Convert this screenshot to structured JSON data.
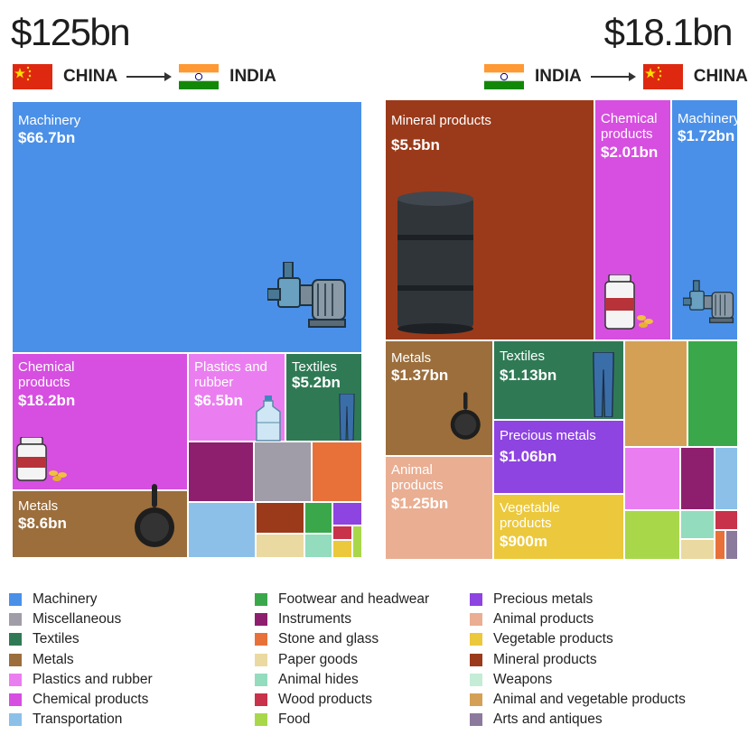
{
  "left": {
    "total": "$125bn",
    "from": "CHINA",
    "to": "INDIA"
  },
  "right": {
    "total": "$18.1bn",
    "from": "INDIA",
    "to": "CHINA"
  },
  "colors": {
    "Machinery": "#4a90e8",
    "Miscellaneous": "#a09ca8",
    "Textiles": "#2f7a55",
    "Metals": "#9b6e3c",
    "Plastics and rubber": "#ea7ef0",
    "Chemical products": "#d64fe0",
    "Transportation": "#8cc0e8",
    "Footwear and headwear": "#3aa84a",
    "Instruments": "#8e1f6e",
    "Stone and glass": "#e8713a",
    "Paper goods": "#ead9a0",
    "Animal hides": "#93dcbe",
    "Wood products": "#c8324a",
    "Food": "#a8d84a",
    "Precious metals": "#8d44e0",
    "Animal products": "#eaae92",
    "Vegetable products": "#ecc83c",
    "Mineral products": "#9b3a1a",
    "Weapons": "#c4ecd6",
    "Animal and vegetable products": "#d4a056",
    "Arts and antiques": "#8c7a9c"
  },
  "chart_data": [
    {
      "type": "treemap",
      "title": "$125bn",
      "subtitle": "CHINA → INDIA",
      "labeled": [
        {
          "category": "Machinery",
          "label": "Machinery",
          "value": 66.7,
          "value_label": "$66.7bn"
        },
        {
          "category": "Chemical products",
          "label": "Chemical products",
          "value": 18.2,
          "value_label": "$18.2bn"
        },
        {
          "category": "Plastics and rubber",
          "label": "Plastics and rubber",
          "value": 6.5,
          "value_label": "$6.5bn"
        },
        {
          "category": "Textiles",
          "label": "Textiles",
          "value": 5.2,
          "value_label": "$5.2bn"
        },
        {
          "category": "Metals",
          "label": "Metals",
          "value": 8.6,
          "value_label": "$8.6bn"
        }
      ],
      "unlabeled": [
        "Instruments",
        "Miscellaneous",
        "Stone and glass",
        "Transportation",
        "Mineral products",
        "Footwear and headwear",
        "Precious metals",
        "Paper goods",
        "Animal hides",
        "Wood products",
        "Vegetable products",
        "Food"
      ]
    },
    {
      "type": "treemap",
      "title": "$18.1bn",
      "subtitle": "INDIA → CHINA",
      "labeled": [
        {
          "category": "Mineral products",
          "label": "Mineral products",
          "value": 5.5,
          "value_label": "$5.5bn"
        },
        {
          "category": "Chemical products",
          "label": "Chemical products",
          "value": 2.01,
          "value_label": "$2.01bn"
        },
        {
          "category": "Machinery",
          "label": "Machinery",
          "value": 1.72,
          "value_label": "$1.72bn"
        },
        {
          "category": "Metals",
          "label": "Metals",
          "value": 1.37,
          "value_label": "$1.37bn"
        },
        {
          "category": "Textiles",
          "label": "Textiles",
          "value": 1.13,
          "value_label": "$1.13bn"
        },
        {
          "category": "Precious metals",
          "label": "Precious metals",
          "value": 1.06,
          "value_label": "$1.06bn"
        },
        {
          "category": "Animal products",
          "label": "Animal products",
          "value": 1.25,
          "value_label": "$1.25bn"
        },
        {
          "category": "Vegetable products",
          "label": "Vegetable products",
          "value": 0.9,
          "value_label": "$900m"
        }
      ],
      "unlabeled": [
        "Animal and vegetable products",
        "Footwear and headwear",
        "Plastics and rubber",
        "Instruments",
        "Transportation",
        "Food",
        "Animal hides",
        "Wood products",
        "Paper goods",
        "Stone and glass",
        "Arts and antiques"
      ]
    }
  ],
  "legend": [
    [
      "Machinery",
      "Miscellaneous",
      "Textiles",
      "Metals",
      "Plastics and rubber",
      "Chemical products",
      "Transportation"
    ],
    [
      "Footwear and headwear",
      "Instruments",
      "Stone and glass",
      "Paper goods",
      "Animal hides",
      "Wood products",
      "Food"
    ],
    [
      "Precious metals",
      "Animal products",
      "Vegetable products",
      "Mineral products",
      "Weapons",
      "Animal and vegetable products",
      "Arts and antiques"
    ]
  ]
}
